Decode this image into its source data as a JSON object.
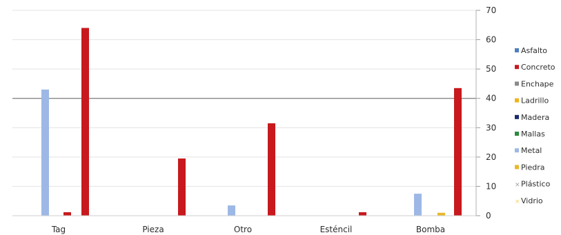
{
  "chart_data": {
    "type": "bar",
    "title": "",
    "xlabel": "",
    "ylabel": "",
    "ylim": [
      0,
      70
    ],
    "yticks": [
      0,
      10,
      20,
      30,
      40,
      50,
      60,
      70
    ],
    "grid": true,
    "legend_position": "right",
    "categories": [
      "Tag",
      "Pieza",
      "Otro",
      "Esténcil",
      "Bomba"
    ],
    "series": [
      {
        "name": "Asfalto",
        "color": "#4f7fbf",
        "values": [
          0,
          0,
          0,
          0,
          0
        ]
      },
      {
        "name": "Concreto",
        "color": "#c8191e",
        "values": [
          1.2,
          0,
          0,
          0,
          0
        ]
      },
      {
        "name": "Enchape",
        "color": "#8a8a8a",
        "values": [
          0,
          0,
          0,
          0,
          0
        ]
      },
      {
        "name": "Ladrillo",
        "color": "#f2b21c",
        "values": [
          0,
          0,
          0,
          0,
          0
        ]
      },
      {
        "name": "Madera",
        "color": "#1a2a6c",
        "values": [
          0,
          0,
          0,
          0,
          0
        ]
      },
      {
        "name": "Mallas",
        "color": "#2e8b3e",
        "values": [
          0,
          0,
          0,
          0,
          0
        ]
      },
      {
        "name": "Metal",
        "color": "#9db8e6",
        "values": [
          43,
          0,
          3.5,
          0,
          7.5
        ]
      },
      {
        "name": "Piedra",
        "color": "#e7b82a",
        "values": [
          0,
          0,
          0,
          0,
          1
        ]
      },
      {
        "name": "Plástico",
        "color": "#9a9a9a",
        "values": [
          0,
          0,
          0,
          0,
          0
        ]
      },
      {
        "name": "Vidrio",
        "color": "#f5d36b",
        "values": [
          0,
          0,
          0,
          0,
          0
        ]
      },
      {
        "name": "Concreto",
        "color": "#c8191e",
        "values": [
          64,
          19.5,
          31.5,
          1.2,
          43.5
        ],
        "legend": false
      }
    ],
    "legend": [
      {
        "name": "Asfalto",
        "color": "#4f7fbf",
        "marker": "square"
      },
      {
        "name": "Concreto",
        "color": "#c8191e",
        "marker": "square"
      },
      {
        "name": "Enchape",
        "color": "#8a8a8a",
        "marker": "square"
      },
      {
        "name": "Ladrillo",
        "color": "#f2b21c",
        "marker": "square"
      },
      {
        "name": "Madera",
        "color": "#1a2a6c",
        "marker": "square"
      },
      {
        "name": "Mallas",
        "color": "#2e8b3e",
        "marker": "square"
      },
      {
        "name": "Metal",
        "color": "#9db8e6",
        "marker": "square"
      },
      {
        "name": "Piedra",
        "color": "#e7b82a",
        "marker": "square"
      },
      {
        "name": "Plástico",
        "color": "#9a9a9a",
        "marker": "x"
      },
      {
        "name": "Vidrio",
        "color": "#f5d36b",
        "marker": "x"
      }
    ]
  }
}
